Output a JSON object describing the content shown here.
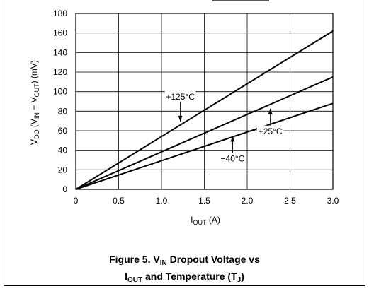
{
  "chart_data": {
    "type": "line",
    "title": "Figure 5. V_IN Dropout Voltage vs I_OUT and Temperature (T_J)",
    "xlabel": "I_OUT (A)",
    "ylabel": "V_DO (V_IN − V_OUT) (mV)",
    "xlim": [
      0,
      3.0
    ],
    "ylim": [
      0,
      180
    ],
    "xticks": [
      "0",
      "0.5",
      "1.0",
      "1.5",
      "2.0",
      "2.5",
      "3.0"
    ],
    "yticks": [
      "0",
      "20",
      "40",
      "60",
      "80",
      "100",
      "120",
      "140",
      "160",
      "180"
    ],
    "grid": true,
    "series": [
      {
        "name": "+125°C",
        "x": [
          0,
          3.0
        ],
        "y": [
          0,
          162
        ]
      },
      {
        "name": "+25°C",
        "x": [
          0,
          3.0
        ],
        "y": [
          0,
          115
        ]
      },
      {
        "name": "−40°C",
        "x": [
          0,
          3.0
        ],
        "y": [
          0,
          88
        ]
      }
    ],
    "annotations": [
      {
        "text": "+125°C",
        "x": 1.22,
        "y": 68,
        "arrow": "down"
      },
      {
        "text": "+25°C",
        "x": 2.27,
        "y": 84,
        "arrow": "up"
      },
      {
        "text": "−40°C",
        "x": 1.83,
        "y": 56,
        "arrow": "up"
      }
    ]
  },
  "caption": {
    "line1_prefix": "Figure 5. V",
    "line1_sub": "IN",
    "line1_suffix": " Dropout Voltage vs",
    "line2_prefix": "I",
    "line2_sub": "OUT",
    "line2_middle": " and Temperature (T",
    "line2_sub2": "J",
    "line2_suffix": ")"
  },
  "axis_titles": {
    "x_main": "I",
    "x_sub": "OUT",
    "x_unit": " (A)",
    "y_v": "V",
    "y_do": "DO",
    "y_mid1": " (V",
    "y_in": "IN",
    "y_minus": " − V",
    "y_out": "OUT",
    "y_unit": ") (mV)"
  }
}
